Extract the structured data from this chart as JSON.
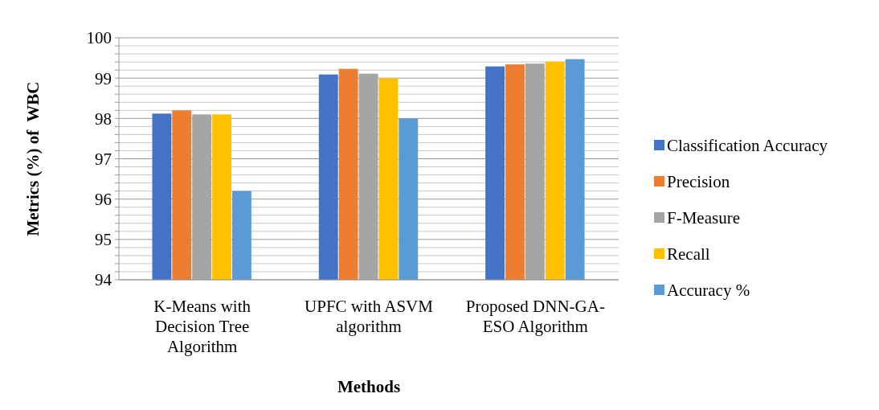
{
  "chart_data": {
    "type": "bar",
    "xlabel": "Methods",
    "ylabel": "Metrics (%) of  WBC",
    "categories": [
      "K-Means with Decision Tree Algorithm",
      "UPFC with ASVM algorithm",
      "Proposed DNN-GA-ESO Algorithm"
    ],
    "series": [
      {
        "name": "Classification Accuracy",
        "color": "#4472c4",
        "values": [
          98.12,
          99.09,
          99.29
        ]
      },
      {
        "name": "Precision",
        "color": "#ed7d31",
        "values": [
          98.2,
          99.23,
          99.34
        ]
      },
      {
        "name": "F-Measure",
        "color": "#a5a5a5",
        "values": [
          98.1,
          99.11,
          99.36
        ]
      },
      {
        "name": "Recall",
        "color": "#ffc000",
        "values": [
          98.1,
          99.0,
          99.41
        ]
      },
      {
        "name": "Accuracy %",
        "color": "#5b9bd5",
        "values": [
          96.2,
          98.0,
          99.47
        ]
      }
    ],
    "ylim": [
      94,
      100
    ],
    "yticks": [
      94,
      {
        "value": 94.2,
        "label": null
      },
      {
        "value": 94.4,
        "label": null
      },
      {
        "value": 94.6,
        "label": null
      },
      {
        "value": 94.8,
        "label": null
      },
      95,
      {
        "value": 95.2,
        "label": null
      },
      {
        "value": 95.4,
        "label": null
      },
      {
        "value": 95.6,
        "label": null
      },
      {
        "value": 95.8,
        "label": null
      },
      96,
      {
        "value": 96.2,
        "label": null
      },
      {
        "value": 96.4,
        "label": null
      },
      {
        "value": 96.6,
        "label": null
      },
      {
        "value": 96.8,
        "label": null
      },
      97,
      {
        "value": 97.2,
        "label": null
      },
      {
        "value": 97.4,
        "label": null
      },
      {
        "value": 97.6,
        "label": null
      },
      {
        "value": 97.8,
        "label": null
      },
      98,
      {
        "value": 98.2,
        "label": null
      },
      {
        "value": 98.4,
        "label": null
      },
      {
        "value": 98.6,
        "label": null
      },
      {
        "value": 98.8,
        "label": null
      },
      99,
      {
        "value": 99.2,
        "label": null
      },
      {
        "value": 99.4,
        "label": null
      },
      {
        "value": 99.6,
        "label": null
      },
      {
        "value": 99.8,
        "label": null
      },
      100
    ],
    "grid": "y",
    "legend": "right"
  }
}
